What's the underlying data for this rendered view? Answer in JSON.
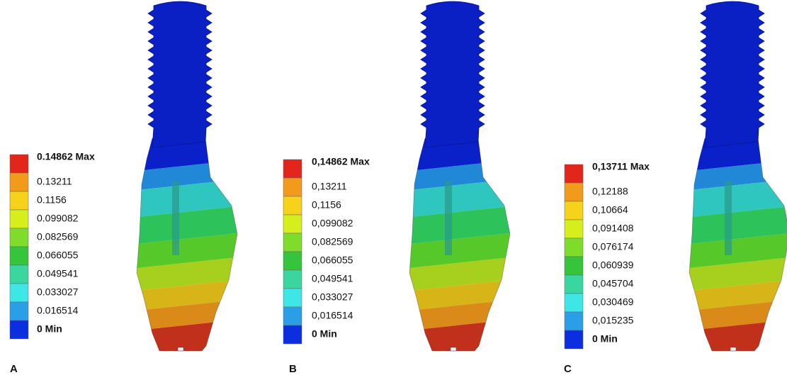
{
  "panels": [
    {
      "label": "A",
      "legend": [
        "0.14862 Max",
        "0.13211",
        "0.1156",
        "0.099082",
        "0.082569",
        "0.066055",
        "0.049541",
        "0.033027",
        "0.016514",
        "0 Min"
      ]
    },
    {
      "label": "B",
      "legend": [
        "0,14862 Max",
        "0,13211",
        "0,1156",
        "0,099082",
        "0,082569",
        "0,066055",
        "0,049541",
        "0,033027",
        "0,016514",
        "0 Min"
      ]
    },
    {
      "label": "C",
      "legend": [
        "0,13711 Max",
        "0,12188",
        "0,10664",
        "0,091408",
        "0,076174",
        "0,060939",
        "0,045704",
        "0,030469",
        "0,015235",
        "0 Min"
      ]
    }
  ]
}
